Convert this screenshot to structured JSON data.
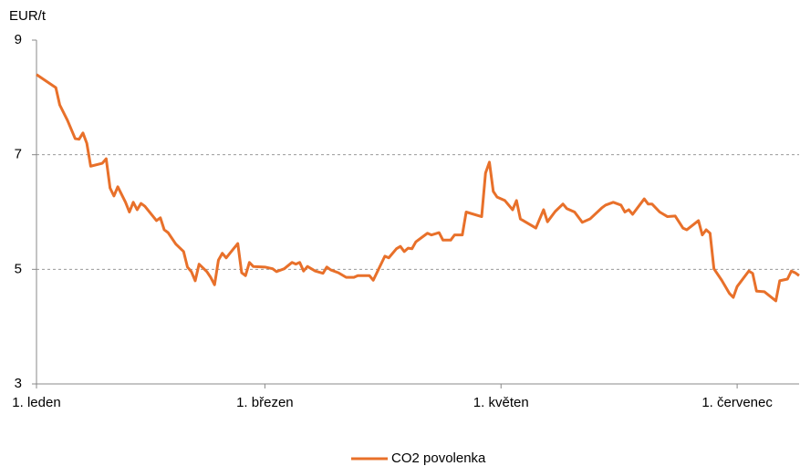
{
  "chart_data": {
    "type": "line",
    "y_label": "EUR/t",
    "x": [
      0,
      5,
      6,
      8,
      10,
      11,
      12,
      13,
      14,
      17,
      18,
      19,
      20,
      21,
      23,
      24,
      25,
      26,
      27,
      28,
      31,
      32,
      33,
      34,
      36,
      38,
      39,
      40,
      41,
      42,
      44,
      45,
      46,
      47,
      48,
      49,
      52,
      53,
      54,
      55,
      56,
      59,
      61,
      62,
      64,
      66,
      67,
      68,
      69,
      70,
      72,
      74,
      75,
      76,
      78,
      80,
      82,
      83,
      86,
      87,
      90,
      91,
      93,
      94,
      95,
      96,
      97,
      98,
      100,
      101,
      102,
      104,
      105,
      107,
      108,
      110,
      111,
      115,
      116,
      117,
      118,
      119,
      121,
      123,
      124,
      125,
      129,
      131,
      132,
      134,
      136,
      137,
      139,
      141,
      143,
      146,
      147,
      149,
      151,
      152,
      153,
      154,
      157,
      158,
      159,
      161,
      163,
      165,
      167,
      168,
      171,
      172,
      173,
      174,
      175,
      177,
      179,
      180,
      181,
      184,
      185,
      186,
      188,
      191,
      192,
      194,
      195,
      196,
      197
    ],
    "series": [
      {
        "name": "CO2 povolenka",
        "color": "#e8702a",
        "values": [
          8.4,
          8.17,
          7.87,
          7.6,
          7.28,
          7.27,
          7.38,
          7.2,
          6.8,
          6.85,
          6.93,
          6.42,
          6.28,
          6.44,
          6.17,
          6.0,
          6.17,
          6.04,
          6.15,
          6.1,
          5.85,
          5.9,
          5.69,
          5.64,
          5.44,
          5.31,
          5.04,
          4.96,
          4.8,
          5.09,
          4.96,
          4.86,
          4.73,
          5.16,
          5.28,
          5.2,
          5.45,
          4.94,
          4.89,
          5.12,
          5.05,
          5.04,
          5.01,
          4.96,
          5.01,
          5.12,
          5.09,
          5.12,
          4.97,
          5.05,
          4.97,
          4.93,
          5.04,
          4.99,
          4.94,
          4.86,
          4.86,
          4.89,
          4.89,
          4.81,
          5.23,
          5.2,
          5.36,
          5.4,
          5.31,
          5.37,
          5.36,
          5.48,
          5.58,
          5.63,
          5.6,
          5.64,
          5.51,
          5.51,
          5.6,
          5.6,
          6.0,
          5.92,
          6.68,
          6.87,
          6.36,
          6.26,
          6.2,
          6.04,
          6.2,
          5.88,
          5.72,
          6.04,
          5.83,
          6.01,
          6.14,
          6.06,
          6.0,
          5.82,
          5.88,
          6.07,
          6.12,
          6.17,
          6.12,
          6.0,
          6.04,
          5.96,
          6.23,
          6.14,
          6.14,
          6.0,
          5.92,
          5.93,
          5.72,
          5.69,
          5.85,
          5.6,
          5.69,
          5.63,
          5.01,
          4.81,
          4.58,
          4.51,
          4.7,
          4.97,
          4.93,
          4.62,
          4.61,
          4.45,
          4.8,
          4.83,
          4.97,
          4.94,
          4.89
        ]
      }
    ],
    "xlim": [
      0,
      197
    ],
    "xticks": [
      {
        "value": 0,
        "label": "1. leden"
      },
      {
        "value": 59,
        "label": "1. březen"
      },
      {
        "value": 120,
        "label": "1. květen"
      },
      {
        "value": 181,
        "label": "1. červenec"
      }
    ],
    "ylim": [
      3,
      9
    ],
    "yticks": [
      3,
      5,
      7,
      9
    ],
    "grid": true,
    "legend": "bottom"
  }
}
